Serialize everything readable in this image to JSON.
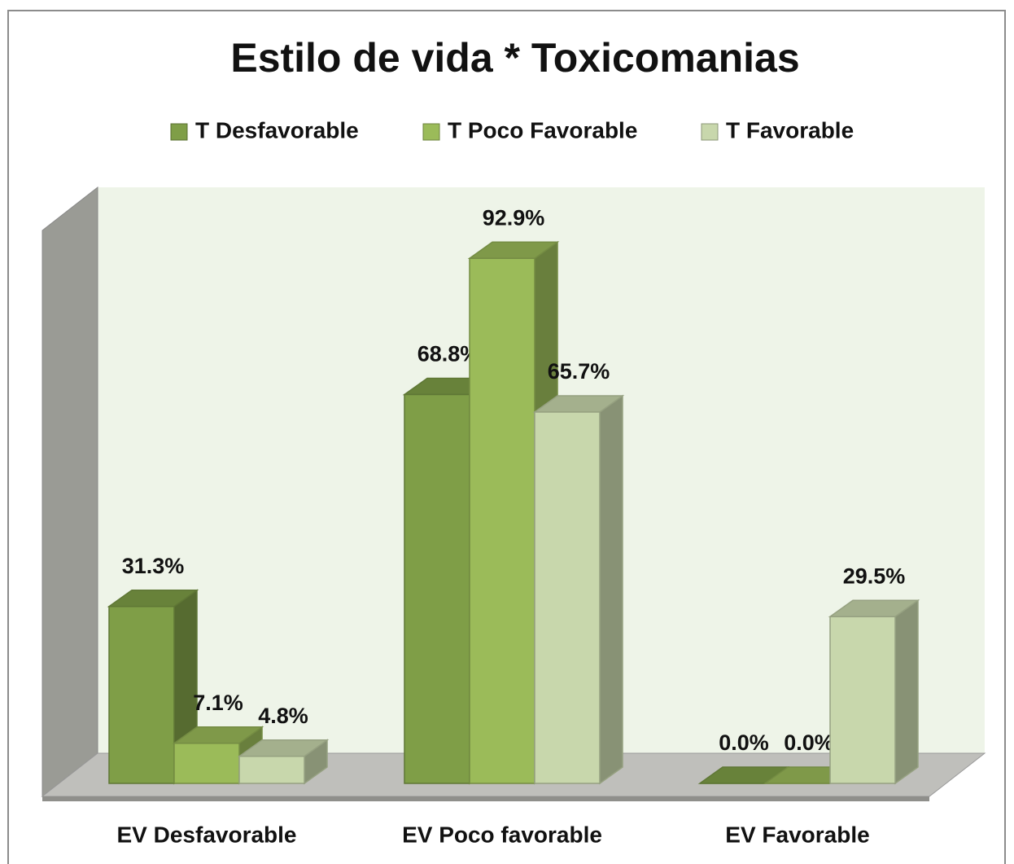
{
  "chart_data": {
    "type": "bar3d",
    "title": "Estilo de vida * Toxicomanias",
    "categories": [
      "EV Desfavorable",
      "EV Poco favorable",
      "EV Favorable"
    ],
    "series": [
      {
        "name": "T Desfavorable",
        "color": "#7f9e47",
        "values": [
          31.3,
          68.8,
          0.0
        ],
        "value_labels": [
          "31.3%",
          "68.8%",
          "0.0%"
        ]
      },
      {
        "name": "T Poco Favorable",
        "color": "#9bbb59",
        "values": [
          7.1,
          92.9,
          0.0
        ],
        "value_labels": [
          "7.1%",
          "92.9%",
          "0.0%"
        ]
      },
      {
        "name": "T Favorable",
        "color": "#c8d7ac",
        "values": [
          4.8,
          65.7,
          29.5
        ],
        "value_labels": [
          "4.8%",
          "65.7%",
          "29.5%"
        ]
      }
    ],
    "legend": "top"
  }
}
